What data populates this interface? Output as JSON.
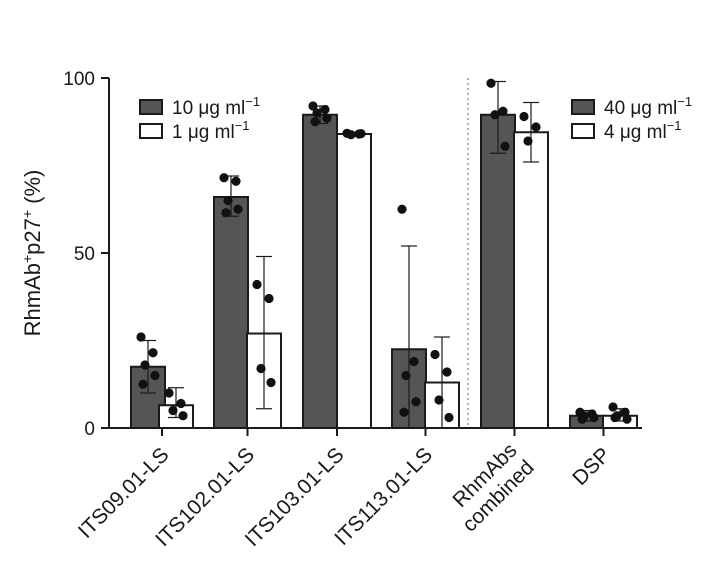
{
  "chart_data": {
    "type": "bar",
    "ylabel_parts": [
      "RhmAb",
      "+",
      "p27",
      "+",
      " (%)"
    ],
    "ylim": [
      0,
      100
    ],
    "yticks": [
      "0",
      "50",
      "100"
    ],
    "groups": [
      {
        "label_lines": [
          "ITS09.01-LS"
        ],
        "bars": [
          {
            "series": 0,
            "mean": 17.5,
            "err": [
              10,
              25
            ],
            "points": [
              26,
              21.5,
              18,
              15,
              12.5
            ]
          },
          {
            "series": 1,
            "mean": 6.5,
            "err": [
              3,
              11.5
            ],
            "points": [
              10,
              7,
              5,
              3.5
            ]
          }
        ]
      },
      {
        "label_lines": [
          "ITS102.01-LS"
        ],
        "bars": [
          {
            "series": 0,
            "mean": 66,
            "err": [
              60.5,
              72
            ],
            "points": [
              71.5,
              70.5,
              65,
              62.5,
              61.5
            ]
          },
          {
            "series": 1,
            "mean": 27,
            "err": [
              5.5,
              49
            ],
            "points": [
              41,
              37,
              17,
              13
            ]
          }
        ]
      },
      {
        "label_lines": [
          "ITS103.01-LS"
        ],
        "bars": [
          {
            "series": 0,
            "mean": 89.5,
            "err": [
              87,
              92
            ],
            "points": [
              92,
              91,
              90,
              88.5,
              87.5
            ]
          },
          {
            "series": 1,
            "mean": 84,
            "err": [
              83.5,
              84.5
            ],
            "points": [
              84.2,
              84,
              83.8,
              84.1
            ]
          }
        ]
      },
      {
        "label_lines": [
          "ITS113.01-LS"
        ],
        "bars": [
          {
            "series": 0,
            "mean": 22.5,
            "err": [
              0,
              52
            ],
            "points": [
              62.5,
              19,
              15,
              7.5,
              4.5
            ]
          },
          {
            "series": 1,
            "mean": 13,
            "err": [
              0,
              26
            ],
            "points": [
              21,
              16,
              8,
              3
            ]
          }
        ]
      },
      {
        "label_lines": [
          "RhmAbs",
          "combined"
        ],
        "bars": [
          {
            "series": 2,
            "mean": 89.5,
            "err": [
              78.5,
              99
            ],
            "points": [
              98.5,
              90.5,
              89.5,
              80.5
            ]
          },
          {
            "series": 3,
            "mean": 84.5,
            "err": [
              76,
              93
            ],
            "points": [
              89,
              86,
              82
            ]
          }
        ]
      },
      {
        "label_lines": [
          "DSP"
        ],
        "bars": [
          {
            "series": 2,
            "mean": 3.5,
            "err": [
              2,
              5
            ],
            "points": [
              4.5,
              4,
              3.5,
              3,
              2.5
            ]
          },
          {
            "series": 3,
            "mean": 3.5,
            "err": [
              2,
              5.5
            ],
            "points": [
              6,
              4.5,
              3.5,
              2.5,
              3
            ]
          }
        ]
      }
    ],
    "series": [
      {
        "name": "10 μg ml",
        "sup": "−1",
        "fill": "#555555"
      },
      {
        "name": "1 μg ml",
        "sup": "−1",
        "fill": "#ffffff"
      },
      {
        "name": "40 μg ml",
        "sup": "−1",
        "fill": "#555555"
      },
      {
        "name": "4 μg ml",
        "sup": "−1",
        "fill": "#ffffff"
      }
    ],
    "legends": [
      {
        "position": "top-left",
        "series": [
          0,
          1
        ]
      },
      {
        "position": "top-right",
        "series": [
          2,
          3
        ]
      }
    ],
    "divider": "dotted vertical line between ITS113.01-LS and RhmAbs combined",
    "colors": {
      "axis": "#1a1a1a",
      "filled_bar": "#555555",
      "open_bar": "#ffffff",
      "divider": "#999999"
    }
  }
}
